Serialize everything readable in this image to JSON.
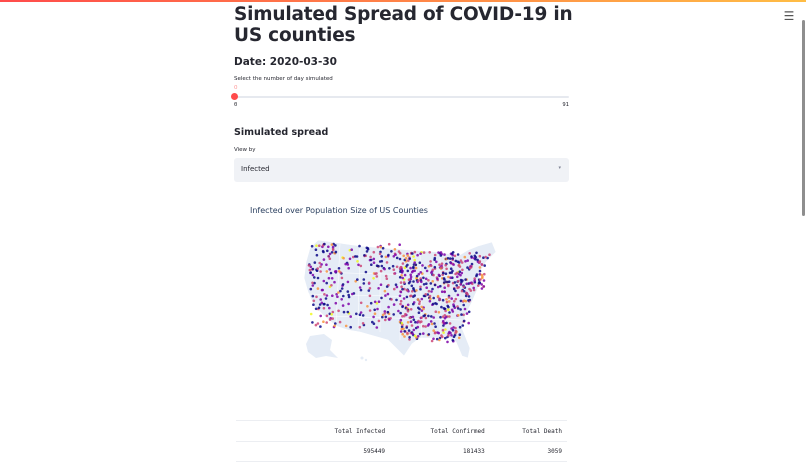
{
  "header": {
    "menu_icon": "hamburger-menu-icon",
    "menu_glyph": "☰"
  },
  "page": {
    "title": "Simulated Spread of COVID-19 in US counties",
    "date_label": "Date: 2020-03-30"
  },
  "slider": {
    "label": "Select the number of day simulated",
    "current_value": "0",
    "min": "0",
    "max": "91",
    "accent_color": "#ff4b4b"
  },
  "section": {
    "title": "Simulated spread"
  },
  "select": {
    "label": "View by",
    "value": "Infected",
    "arrow_glyph": "▾"
  },
  "chart": {
    "title": "Infected over Population Size of US Counties",
    "type": "scatter_geo",
    "colorscale": [
      "#0d0887",
      "#7e03a8",
      "#cc4778",
      "#f89540",
      "#f0f921"
    ],
    "land_color": "#e5ecf6"
  },
  "totals_table": {
    "headers": [
      "",
      "Total Infected",
      "Total Confirmed",
      "Total Death"
    ],
    "rows": [
      [
        "",
        "595449",
        "181433",
        "3059"
      ]
    ]
  }
}
